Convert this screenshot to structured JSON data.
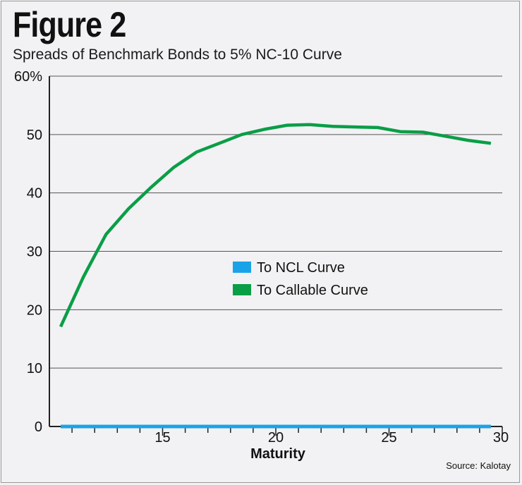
{
  "header": {
    "title": "Figure 2",
    "subtitle": "Spreads of Benchmark Bonds to 5% NC-10 Curve"
  },
  "footer": {
    "source": "Source: Kalotay"
  },
  "chart_data": {
    "type": "line",
    "title": "Spreads of Benchmark Bonds to 5% NC-10 Curve",
    "xlabel": "Maturity",
    "ylabel": "",
    "xlim": [
      10,
      30
    ],
    "ylim": [
      0,
      60
    ],
    "x_ticks": [
      15,
      20,
      25,
      30
    ],
    "x_minor_ticks": [
      11,
      12,
      13,
      14,
      16,
      17,
      18,
      19,
      21,
      22,
      23,
      24,
      26,
      27,
      28,
      29
    ],
    "y_ticks": [
      0,
      10,
      20,
      30,
      40,
      50,
      60
    ],
    "y_tick_labels": [
      "0",
      "10",
      "20",
      "30",
      "40",
      "50",
      "60%"
    ],
    "grid": true,
    "legend": "center",
    "series": [
      {
        "name": "To NCL Curve",
        "color": "#1aa3e8",
        "x": [
          10.5,
          29.5
        ],
        "values": [
          0,
          0
        ]
      },
      {
        "name": "To Callable Curve",
        "color": "#0a9e47",
        "x": [
          10.5,
          11.5,
          12.5,
          13.5,
          14.5,
          15.5,
          16.5,
          17.5,
          18.5,
          19.5,
          20.5,
          21.5,
          22.5,
          23.5,
          24.5,
          25.5,
          26.5,
          27.5,
          28.5,
          29.5
        ],
        "values": [
          17.1,
          25.6,
          32.9,
          37.3,
          41.0,
          44.4,
          47.0,
          48.5,
          50.0,
          50.9,
          51.6,
          51.7,
          51.4,
          51.3,
          51.2,
          50.5,
          50.4,
          49.7,
          49.0,
          48.5
        ]
      }
    ]
  }
}
